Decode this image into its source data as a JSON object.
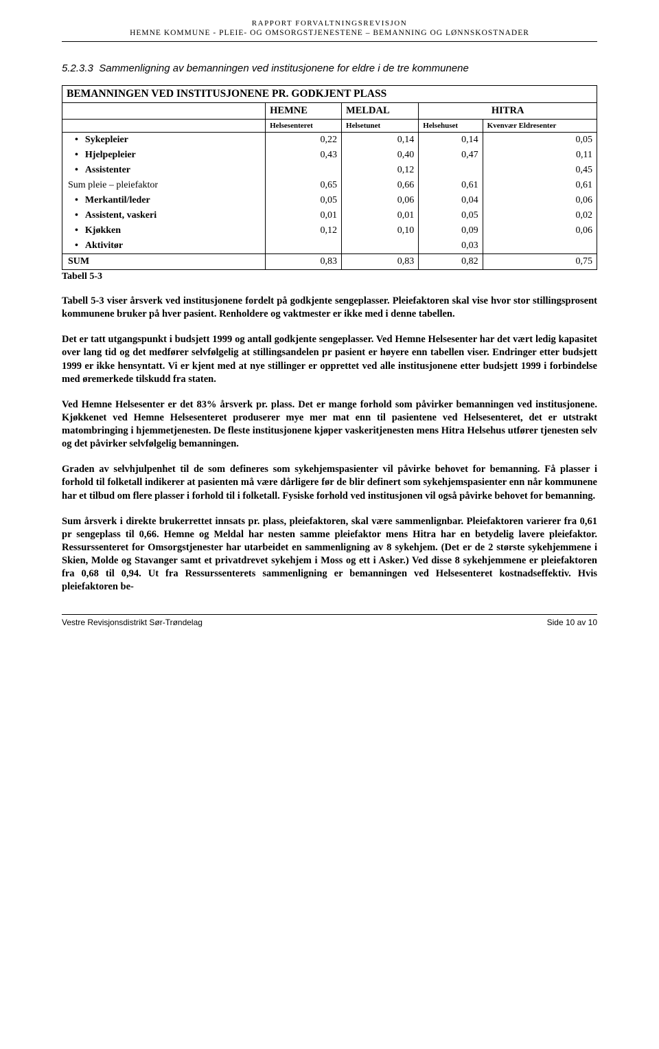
{
  "header": {
    "line1": "RAPPORT FORVALTNINGSREVISJON",
    "line2": "HEMNE KOMMUNE  -  PLEIE- OG OMSORGSTJENESTENE – BEMANNING OG LØNNSKOSTNADER"
  },
  "section": {
    "number": "5.2.3.3",
    "title": "Sammenligning av bemanningen ved institusjonene for eldre i de tre kommunene"
  },
  "table": {
    "title": "BEMANNINGEN VED INSTITUSJONENE PR. GODKJENT PLASS",
    "col_group_headers": [
      "HEMNE",
      "MELDAL",
      "HITRA"
    ],
    "col_sub_headers": [
      "Helsesenteret",
      "Helsetunet",
      "Helsehuset",
      "Kvenvær Eldresenter"
    ],
    "rows": [
      {
        "label": "Sykepleier",
        "bullet": true,
        "bold": true,
        "vals": [
          "0,22",
          "0,14",
          "0,14",
          "0,05"
        ]
      },
      {
        "label": "Hjelpepleier",
        "bullet": true,
        "bold": true,
        "vals": [
          "0,43",
          "0,40",
          "0,47",
          "0,11"
        ]
      },
      {
        "label": "Assistenter",
        "bullet": true,
        "bold": true,
        "vals": [
          "",
          "0,12",
          "",
          "0,45"
        ]
      },
      {
        "label": "Sum pleie – pleiefaktor",
        "bullet": false,
        "bold": false,
        "vals": [
          "0,65",
          "0,66",
          "0,61",
          "0,61"
        ]
      },
      {
        "label": "Merkantil/leder",
        "bullet": true,
        "bold": true,
        "vals": [
          "0,05",
          "0,06",
          "0,04",
          "0,06"
        ]
      },
      {
        "label": "Assistent, vaskeri",
        "bullet": true,
        "bold": true,
        "vals": [
          "0,01",
          "0,01",
          "0,05",
          "0,02"
        ]
      },
      {
        "label": "Kjøkken",
        "bullet": true,
        "bold": true,
        "vals": [
          "0,12",
          "0,10",
          "0,09",
          "0,06"
        ]
      },
      {
        "label": "Aktivitør",
        "bullet": true,
        "bold": true,
        "vals": [
          "",
          "",
          "0,03",
          ""
        ]
      },
      {
        "label": "SUM",
        "bullet": false,
        "bold": true,
        "vals": [
          "0,83",
          "0,83",
          "0,82",
          "0,75"
        ]
      }
    ],
    "label_after": "Tabell 5-3"
  },
  "paragraphs": [
    "Tabell 5-3 viser årsverk ved institusjonene fordelt på godkjente sengeplasser. Pleiefaktoren skal vise hvor stor stillingsprosent kommunene bruker på hver pasient. Renholdere og vaktmester er ikke med i denne tabellen.",
    "Det er tatt utgangspunkt i budsjett 1999 og antall godkjente sengeplasser. Ved Hemne Helsesenter har det vært ledig kapasitet over lang tid og det medfører selvfølgelig at stillingsandelen pr pasient er høyere enn tabellen viser. Endringer etter budsjett 1999 er ikke hensyntatt. Vi er kjent med at nye stillinger er opprettet ved alle institusjonene etter budsjett 1999 i forbindelse med øremerkede tilskudd fra staten.",
    "Ved Hemne Helsesenter er det 83% årsverk pr. plass. Det er mange forhold som påvirker bemanningen ved institusjonene. Kjøkkenet ved Hemne Helsesenteret produserer mye mer mat enn til pasientene ved Helsesenteret, det er utstrakt matombringing i hjemmetjenesten. De fleste institusjonene kjøper vaskeritjenesten mens Hitra Helsehus utfører tjenesten selv og det påvirker selvfølgelig bemanningen.",
    "Graden av selvhjulpenhet til de som defineres som sykehjemspasienter vil påvirke behovet for bemanning. Få plasser i forhold til folketall indikerer at pasienten må være dårligere før de blir definert som sykehjemspasienter enn når kommunene har et tilbud om flere plasser i forhold til i folketall. Fysiske forhold ved institusjonen vil også påvirke behovet for bemanning.",
    "Sum årsverk i direkte brukerrettet innsats pr. plass, pleiefaktoren, skal være sammenlignbar. Pleiefaktoren varierer fra 0,61 pr sengeplass til 0,66. Hemne og Meldal har nesten samme pleiefaktor mens Hitra har en betydelig lavere pleiefaktor. Ressurssenteret for Omsorgstjenester har utarbeidet en sammenligning av 8 sykehjem. (Det er de 2 største sykehjemmene i Skien, Molde og Stavanger samt et privatdrevet sykehjem i Moss og ett i Asker.) Ved disse 8 sykehjemmene er pleiefaktoren fra 0,68 til 0,94. Ut fra Ressurssenterets sammenligning er bemanningen ved Helsesenteret kostnadseffektiv. Hvis pleiefaktoren be-"
  ],
  "footer": {
    "left": "Vestre Revisjonsdistrikt Sør-Trøndelag",
    "right": "Side 10 av 10"
  },
  "colors": {
    "text": "#000000",
    "bg": "#ffffff",
    "border": "#000000"
  }
}
